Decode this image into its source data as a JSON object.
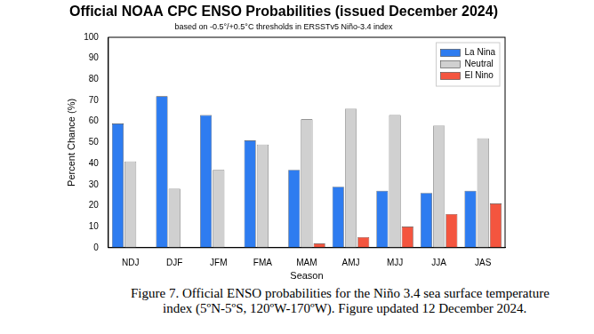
{
  "chart_data": {
    "type": "bar",
    "title": "Official NOAA CPC ENSO Probabilities (issued December 2024)",
    "subtitle": "based on -0.5°/+0.5°C thresholds in ERSSTv5 Niño-3.4 index",
    "x_label": "Season",
    "y_label": "Percent Chance (%)",
    "categories": [
      "NDJ",
      "DJF",
      "JFM",
      "FMA",
      "MAM",
      "AMJ",
      "MJJ",
      "JJA",
      "JAS"
    ],
    "series": [
      {
        "name": "La Nina",
        "color": "#2e7cf0",
        "values": [
          59,
          72,
          63,
          51,
          37,
          29,
          27,
          26,
          27
        ]
      },
      {
        "name": "Neutral",
        "color": "#d0d0d0",
        "values": [
          41,
          28,
          37,
          49,
          61,
          66,
          63,
          58,
          52
        ]
      },
      {
        "name": "El Nino",
        "color": "#f4553f",
        "values": [
          0,
          0,
          0,
          0,
          2,
          5,
          10,
          16,
          21
        ]
      }
    ],
    "ylim": [
      0,
      100
    ],
    "yticks": [
      0,
      10,
      20,
      30,
      40,
      50,
      60,
      70,
      80,
      90,
      100
    ],
    "grid": false,
    "legend": "upper right",
    "caption": "Figure 7. Official ENSO probabilities for the Niño 3.4 sea surface temperature index (5ºN-5ºS, 120ºW-170ºW). Figure updated 12 December 2024."
  }
}
